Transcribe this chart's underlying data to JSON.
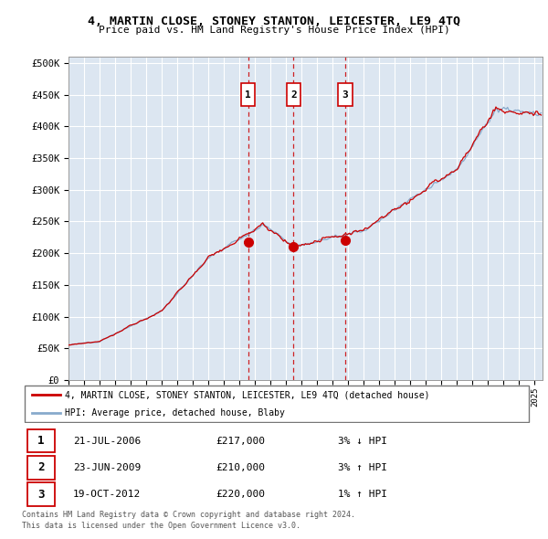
{
  "title": "4, MARTIN CLOSE, STONEY STANTON, LEICESTER, LE9 4TQ",
  "subtitle": "Price paid vs. HM Land Registry's House Price Index (HPI)",
  "y_ticks": [
    0,
    50000,
    100000,
    150000,
    200000,
    250000,
    300000,
    350000,
    400000,
    450000,
    500000
  ],
  "y_labels": [
    "£0",
    "£50K",
    "£100K",
    "£150K",
    "£200K",
    "£250K",
    "£300K",
    "£350K",
    "£400K",
    "£450K",
    "£500K"
  ],
  "transactions": [
    {
      "label": "1",
      "date": "21-JUL-2006",
      "price": 217000,
      "x": 2006.55,
      "pct": "3%",
      "dir": "↓",
      "rel": "HPI"
    },
    {
      "label": "2",
      "date": "23-JUN-2009",
      "price": 210000,
      "x": 2009.48,
      "pct": "3%",
      "dir": "↑",
      "rel": "HPI"
    },
    {
      "label": "3",
      "date": "19-OCT-2012",
      "price": 220000,
      "x": 2012.8,
      "pct": "1%",
      "dir": "↑",
      "rel": "HPI"
    }
  ],
  "legend_line1": "4, MARTIN CLOSE, STONEY STANTON, LEICESTER, LE9 4TQ (detached house)",
  "legend_line2": "HPI: Average price, detached house, Blaby",
  "footer1": "Contains HM Land Registry data © Crown copyright and database right 2024.",
  "footer2": "This data is licensed under the Open Government Licence v3.0.",
  "red_color": "#cc0000",
  "blue_color": "#88aacc",
  "plot_bg": "#dce6f1",
  "table_dates": [
    "21-JUL-2006",
    "23-JUN-2009",
    "19-OCT-2012"
  ],
  "table_prices": [
    "£217,000",
    "£210,000",
    "£220,000"
  ],
  "table_pcts": [
    "3% ↓ HPI",
    "3% ↑ HPI",
    "1% ↑ HPI"
  ]
}
